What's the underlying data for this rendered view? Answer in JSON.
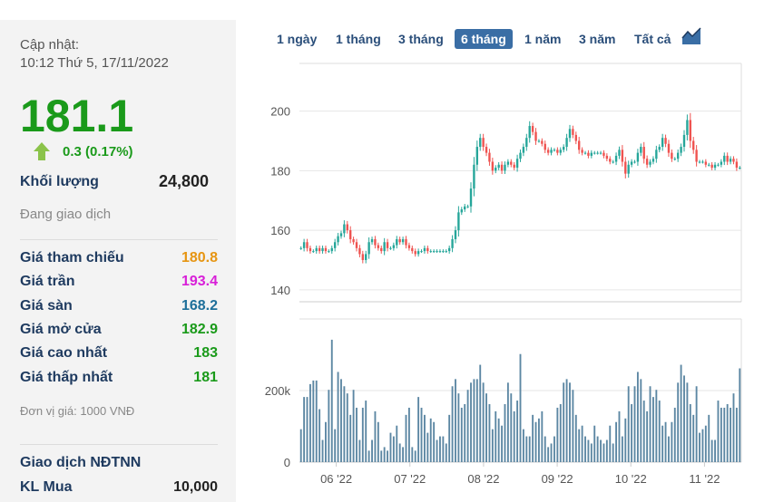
{
  "info": {
    "update_label": "Cập nhật:",
    "update_time": "10:12 Thứ 5, 17/11/2022",
    "price": "181.1",
    "change": "0.3 (0.17%)",
    "volume_label": "Khối lượng",
    "volume_value": "24,800",
    "status": "Đang giao dịch",
    "stats": [
      {
        "label": "Giá tham chiếu",
        "value": "180.8",
        "color": "#e69512"
      },
      {
        "label": "Giá trần",
        "value": "193.4",
        "color": "#d81fd8"
      },
      {
        "label": "Giá sàn",
        "value": "168.2",
        "color": "#1e6f9a"
      },
      {
        "label": "Giá mở cửa",
        "value": "182.9",
        "color": "#1a9a1a"
      },
      {
        "label": "Giá cao nhất",
        "value": "183",
        "color": "#1a9a1a"
      },
      {
        "label": "Giá thấp nhất",
        "value": "181",
        "color": "#1a9a1a"
      }
    ],
    "unit": "Đơn vị giá: 1000 VNĐ",
    "foreign_label": "Giao dịch NĐTNN",
    "kl_mua_label": "KL Mua",
    "kl_mua_value": "10,000"
  },
  "tabs": [
    "1 ngày",
    "1 tháng",
    "3 tháng",
    "6 tháng",
    "1 năm",
    "3 năm",
    "Tất cả"
  ],
  "active_tab": "6 tháng",
  "colors": {
    "up": "#26a69a",
    "down": "#ef5350",
    "volume": "#5c87a3",
    "price_up": "#1a9a1a"
  },
  "chart_data": {
    "type": "candlestick",
    "price_yticks": [
      "140",
      "160",
      "180",
      "200"
    ],
    "price_ylim": [
      136,
      216
    ],
    "volume_yticks": [
      "0",
      "200k"
    ],
    "volume_ylim": [
      0,
      400000
    ],
    "x_labels": [
      "06 '22",
      "07 '22",
      "08 '22",
      "09 '22",
      "10 '22",
      "11 '22"
    ],
    "close": [
      154,
      156,
      154,
      153,
      153,
      154,
      153,
      154,
      153,
      153,
      154,
      156,
      158,
      159,
      162,
      160,
      157,
      156,
      154,
      152,
      150,
      152,
      156,
      157,
      155,
      154,
      153,
      156,
      154,
      154,
      155,
      157,
      156,
      157,
      155,
      154,
      153,
      152,
      153,
      153,
      154,
      153,
      153,
      153,
      153,
      153,
      153,
      153,
      154,
      157,
      160,
      166,
      167,
      168,
      168,
      174,
      182,
      188,
      191,
      188,
      186,
      183,
      180,
      181,
      182,
      180,
      182,
      183,
      182,
      181,
      184,
      186,
      188,
      191,
      195,
      193,
      190,
      190,
      189,
      187,
      186,
      187,
      187,
      186,
      187,
      188,
      191,
      194,
      192,
      190,
      187,
      186,
      186,
      185,
      186,
      186,
      186,
      186,
      185,
      184,
      183,
      183,
      185,
      187,
      183,
      179,
      182,
      183,
      183,
      186,
      188,
      184,
      182,
      183,
      184,
      187,
      188,
      191,
      189,
      186,
      184,
      184,
      186,
      188,
      192,
      197,
      190,
      187,
      183,
      183,
      183,
      182,
      182,
      181,
      182,
      182,
      183,
      185,
      183,
      184,
      183,
      181,
      181
    ],
    "volume": [
      92000,
      182000,
      182000,
      218000,
      228000,
      228000,
      148000,
      62000,
      112000,
      202000,
      342000,
      92000,
      252000,
      232000,
      212000,
      192000,
      132000,
      202000,
      152000,
      62000,
      152000,
      172000,
      32000,
      62000,
      142000,
      112000,
      32000,
      42000,
      32000,
      82000,
      72000,
      102000,
      52000,
      42000,
      132000,
      152000,
      42000,
      32000,
      182000,
      152000,
      132000,
      82000,
      122000,
      112000,
      62000,
      72000,
      72000,
      52000,
      132000,
      212000,
      232000,
      192000,
      152000,
      162000,
      202000,
      222000,
      232000,
      232000,
      272000,
      222000,
      192000,
      162000,
      92000,
      142000,
      122000,
      102000,
      162000,
      222000,
      192000,
      142000,
      172000,
      302000,
      92000,
      72000,
      72000,
      132000,
      112000,
      122000,
      142000,
      72000,
      42000,
      52000,
      72000,
      152000,
      162000,
      222000,
      232000,
      222000,
      202000,
      132000,
      92000,
      102000,
      72000,
      62000,
      52000,
      102000,
      72000,
      62000,
      52000,
      62000,
      102000,
      52000,
      112000,
      142000,
      72000,
      122000,
      212000,
      162000,
      212000,
      252000,
      232000,
      172000,
      142000,
      212000,
      182000,
      202000,
      172000,
      102000,
      112000,
      72000,
      112000,
      152000,
      222000,
      272000,
      242000,
      222000,
      162000,
      132000,
      212000,
      82000,
      92000,
      102000,
      132000,
      62000,
      62000,
      172000,
      152000,
      152000,
      162000,
      152000,
      192000,
      152000,
      262000
    ]
  }
}
